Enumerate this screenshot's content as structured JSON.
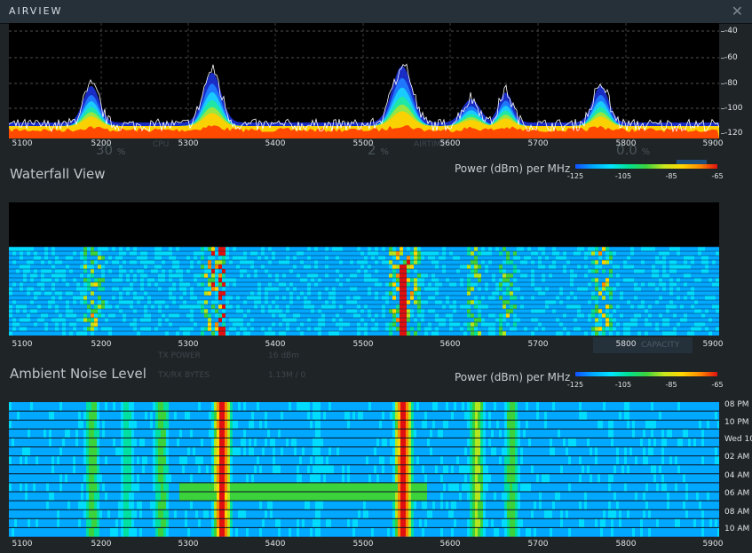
{
  "app": {
    "title": "AIRVIEW"
  },
  "colors": {
    "peak_line": "#ffffff",
    "floor": "#ff4a00",
    "accent": "#1f6fb5"
  },
  "frequency_axis": {
    "unit_hidden": "MHz",
    "ticks": [
      "5100",
      "5200",
      "5300",
      "5400",
      "5500",
      "5600",
      "5700",
      "5800",
      "5900"
    ]
  },
  "spectrum": {
    "y_ticks": [
      "-40",
      "-60",
      "-80",
      "-100",
      "-120"
    ],
    "peaks_mhz": [
      5180,
      5320,
      5540,
      5620,
      5660,
      5770
    ]
  },
  "waterfall": {
    "title": "Waterfall View",
    "legend_label": "Power (dBm) per MHz",
    "legend_ticks": [
      "-125",
      "-105",
      "-85",
      "-65"
    ]
  },
  "ambient": {
    "title": "Ambient Noise Level",
    "legend_label": "Power (dBm) per MHz",
    "legend_ticks": [
      "-125",
      "-105",
      "-85",
      "-65"
    ],
    "time_labels": [
      "08 PM",
      "10 PM",
      "Wed 10",
      "02 AM",
      "04 AM",
      "06 AM",
      "08 AM",
      "10 AM"
    ]
  },
  "background_dashboard": {
    "cpu_label": "CPU",
    "cpu_value": "30",
    "airtime_label": "AIRTIME",
    "airtime_value": "2",
    "third_value": "0.0",
    "percent": "%",
    "tx_power_label": "TX POWER",
    "tx_power_value": "16 dBm",
    "tx_bytes_label": "TX/RX BYTES",
    "tx_bytes_value": "1.13M / 0",
    "capacity_label": "CAPACITY"
  }
}
